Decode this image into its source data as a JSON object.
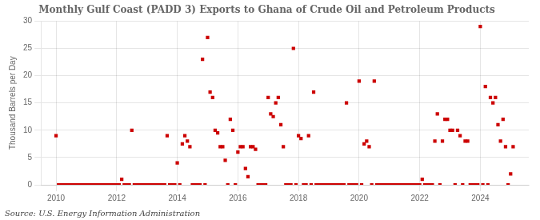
{
  "chart_data": {
    "type": "scatter",
    "title": "Monthly Gulf Coast (PADD 3) Exports to Ghana of Crude Oil and Petroleum Products",
    "y_label": "Thousand Barrels per Day",
    "annotations": [
      "Source: U.S. Energy Information Administration"
    ],
    "color": "#cc0000",
    "marker": "square",
    "grid": true,
    "xlim": [
      2009.5,
      2025.6
    ],
    "xticks": [
      2010,
      2012,
      2014,
      2016,
      2018,
      2020,
      2022,
      2024
    ],
    "ylim": [
      0,
      30
    ],
    "yticks": [
      0,
      5,
      10,
      15,
      20,
      25,
      30
    ],
    "x": [
      2010.0,
      2010.083,
      2010.167,
      2010.25,
      2010.333,
      2010.417,
      2010.5,
      2010.583,
      2010.667,
      2010.75,
      2010.833,
      2010.917,
      2011.0,
      2011.083,
      2011.167,
      2011.25,
      2011.333,
      2011.417,
      2011.5,
      2011.583,
      2011.667,
      2011.75,
      2011.833,
      2011.917,
      2012.0,
      2012.083,
      2012.167,
      2012.25,
      2012.333,
      2012.417,
      2012.5,
      2012.583,
      2012.667,
      2012.75,
      2012.833,
      2012.917,
      2013.0,
      2013.083,
      2013.167,
      2013.25,
      2013.333,
      2013.417,
      2013.5,
      2013.583,
      2013.667,
      2013.75,
      2013.833,
      2013.917,
      2014.0,
      2014.083,
      2014.167,
      2014.25,
      2014.333,
      2014.417,
      2014.5,
      2014.583,
      2014.667,
      2014.75,
      2014.833,
      2014.917,
      2015.0,
      2015.083,
      2015.167,
      2015.25,
      2015.333,
      2015.417,
      2015.5,
      2015.583,
      2015.667,
      2015.75,
      2015.833,
      2015.917,
      2016.0,
      2016.083,
      2016.167,
      2016.25,
      2016.333,
      2016.417,
      2016.5,
      2016.583,
      2016.667,
      2016.75,
      2016.833,
      2016.917,
      2017.0,
      2017.083,
      2017.167,
      2017.25,
      2017.333,
      2017.417,
      2017.5,
      2017.583,
      2017.667,
      2017.75,
      2017.833,
      2017.917,
      2018.0,
      2018.083,
      2018.167,
      2018.25,
      2018.333,
      2018.417,
      2018.5,
      2018.583,
      2018.667,
      2018.75,
      2018.833,
      2018.917,
      2019.0,
      2019.083,
      2019.167,
      2019.25,
      2019.333,
      2019.417,
      2019.5,
      2019.583,
      2019.667,
      2019.75,
      2019.833,
      2019.917,
      2020.0,
      2020.083,
      2020.167,
      2020.25,
      2020.333,
      2020.417,
      2020.5,
      2020.583,
      2020.667,
      2020.75,
      2020.833,
      2020.917,
      2021.0,
      2021.083,
      2021.167,
      2021.25,
      2021.333,
      2021.417,
      2021.5,
      2021.583,
      2021.667,
      2021.75,
      2021.833,
      2021.917,
      2022.0,
      2022.083,
      2022.167,
      2022.25,
      2022.333,
      2022.417,
      2022.5,
      2022.583,
      2022.667,
      2022.75,
      2022.833,
      2022.917,
      2023.0,
      2023.083,
      2023.167,
      2023.25,
      2023.333,
      2023.417,
      2023.5,
      2023.583,
      2023.667,
      2023.75,
      2023.833,
      2023.917,
      2024.0,
      2024.083,
      2024.167,
      2024.25,
      2024.333,
      2024.417,
      2024.5,
      2024.583,
      2024.667,
      2024.75,
      2024.833,
      2024.917,
      2025.0,
      2025.083
    ],
    "values": [
      9.0,
      0.0,
      0.0,
      0.0,
      0.0,
      0.0,
      0.0,
      0.0,
      0.0,
      0.0,
      0.0,
      0.0,
      0.0,
      0.0,
      0.0,
      0.0,
      0.0,
      0.0,
      0.0,
      0.0,
      0.0,
      0.0,
      0.0,
      0.0,
      0.0,
      0.0,
      1.0,
      0.0,
      0.0,
      0.0,
      10.0,
      0.0,
      0.0,
      0.0,
      0.0,
      0.0,
      0.0,
      0.0,
      0.0,
      0.0,
      0.0,
      0.0,
      0.0,
      0.0,
      9.0,
      0.0,
      0.0,
      0.0,
      4.0,
      0.0,
      7.5,
      9.0,
      8.0,
      7.0,
      0.0,
      0.0,
      0.0,
      0.0,
      23.0,
      0.0,
      27.0,
      17.0,
      16.0,
      10.0,
      9.5,
      7.0,
      7.0,
      4.5,
      0.0,
      12.0,
      10.0,
      0.0,
      6.0,
      7.0,
      7.0,
      3.0,
      1.5,
      7.0,
      7.0,
      6.5,
      0.0,
      0.0,
      0.0,
      0.0,
      16.0,
      13.0,
      12.5,
      15.0,
      16.0,
      11.0,
      7.0,
      0.0,
      0.0,
      0.0,
      25.0,
      0.0,
      9.0,
      8.5,
      0.0,
      0.0,
      9.0,
      0.0,
      17.0,
      0.0,
      0.0,
      0.0,
      0.0,
      0.0,
      0.0,
      0.0,
      0.0,
      0.0,
      0.0,
      0.0,
      0.0,
      15.0,
      0.0,
      0.0,
      0.0,
      0.0,
      19.0,
      0.0,
      7.5,
      8.0,
      7.0,
      0.0,
      19.0,
      0.0,
      0.0,
      0.0,
      0.0,
      0.0,
      0.0,
      0.0,
      0.0,
      0.0,
      0.0,
      0.0,
      0.0,
      0.0,
      0.0,
      0.0,
      0.0,
      0.0,
      0.0,
      1.0,
      0.0,
      0.0,
      0.0,
      0.0,
      8.0,
      13.0,
      0.0,
      8.0,
      12.0,
      12.0,
      10.0,
      10.0,
      0.0,
      10.0,
      9.0,
      0.0,
      8.0,
      8.0,
      0.0,
      0.0,
      0.0,
      0.0,
      29.0,
      0.0,
      18.0,
      0.0,
      16.0,
      15.0,
      16.0,
      11.0,
      8.0,
      12.0,
      7.0,
      0.0,
      2.0,
      7.0
    ]
  }
}
